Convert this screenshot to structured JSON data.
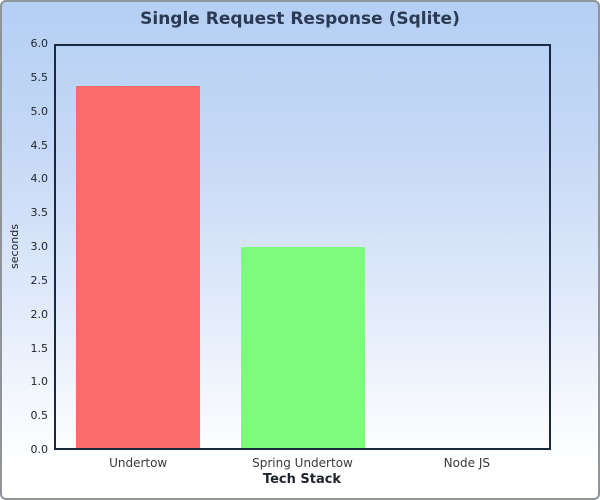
{
  "chart_data": {
    "type": "bar",
    "title": "Single Request Response (Sqlite)",
    "xlabel": "Tech Stack",
    "ylabel": "seconds",
    "categories": [
      "Undertow",
      "Spring Undertow",
      "Node JS"
    ],
    "values": [
      5.4,
      3.0,
      0
    ],
    "bar_colors": [
      "#fb6b6b",
      "#7efc7e",
      null
    ],
    "ylim": [
      0,
      6.0
    ],
    "yticks": [
      0.0,
      0.5,
      1.0,
      1.5,
      2.0,
      2.5,
      3.0,
      3.5,
      4.0,
      4.5,
      5.0,
      5.5,
      6.0
    ],
    "grid": false,
    "legend": false
  },
  "colors": {
    "background_top": "#b4cff4",
    "background_bottom": "#ffffff",
    "plot_border": "#1b2940",
    "frame_border": "#8f9499",
    "title_color": "#2b3a52"
  }
}
